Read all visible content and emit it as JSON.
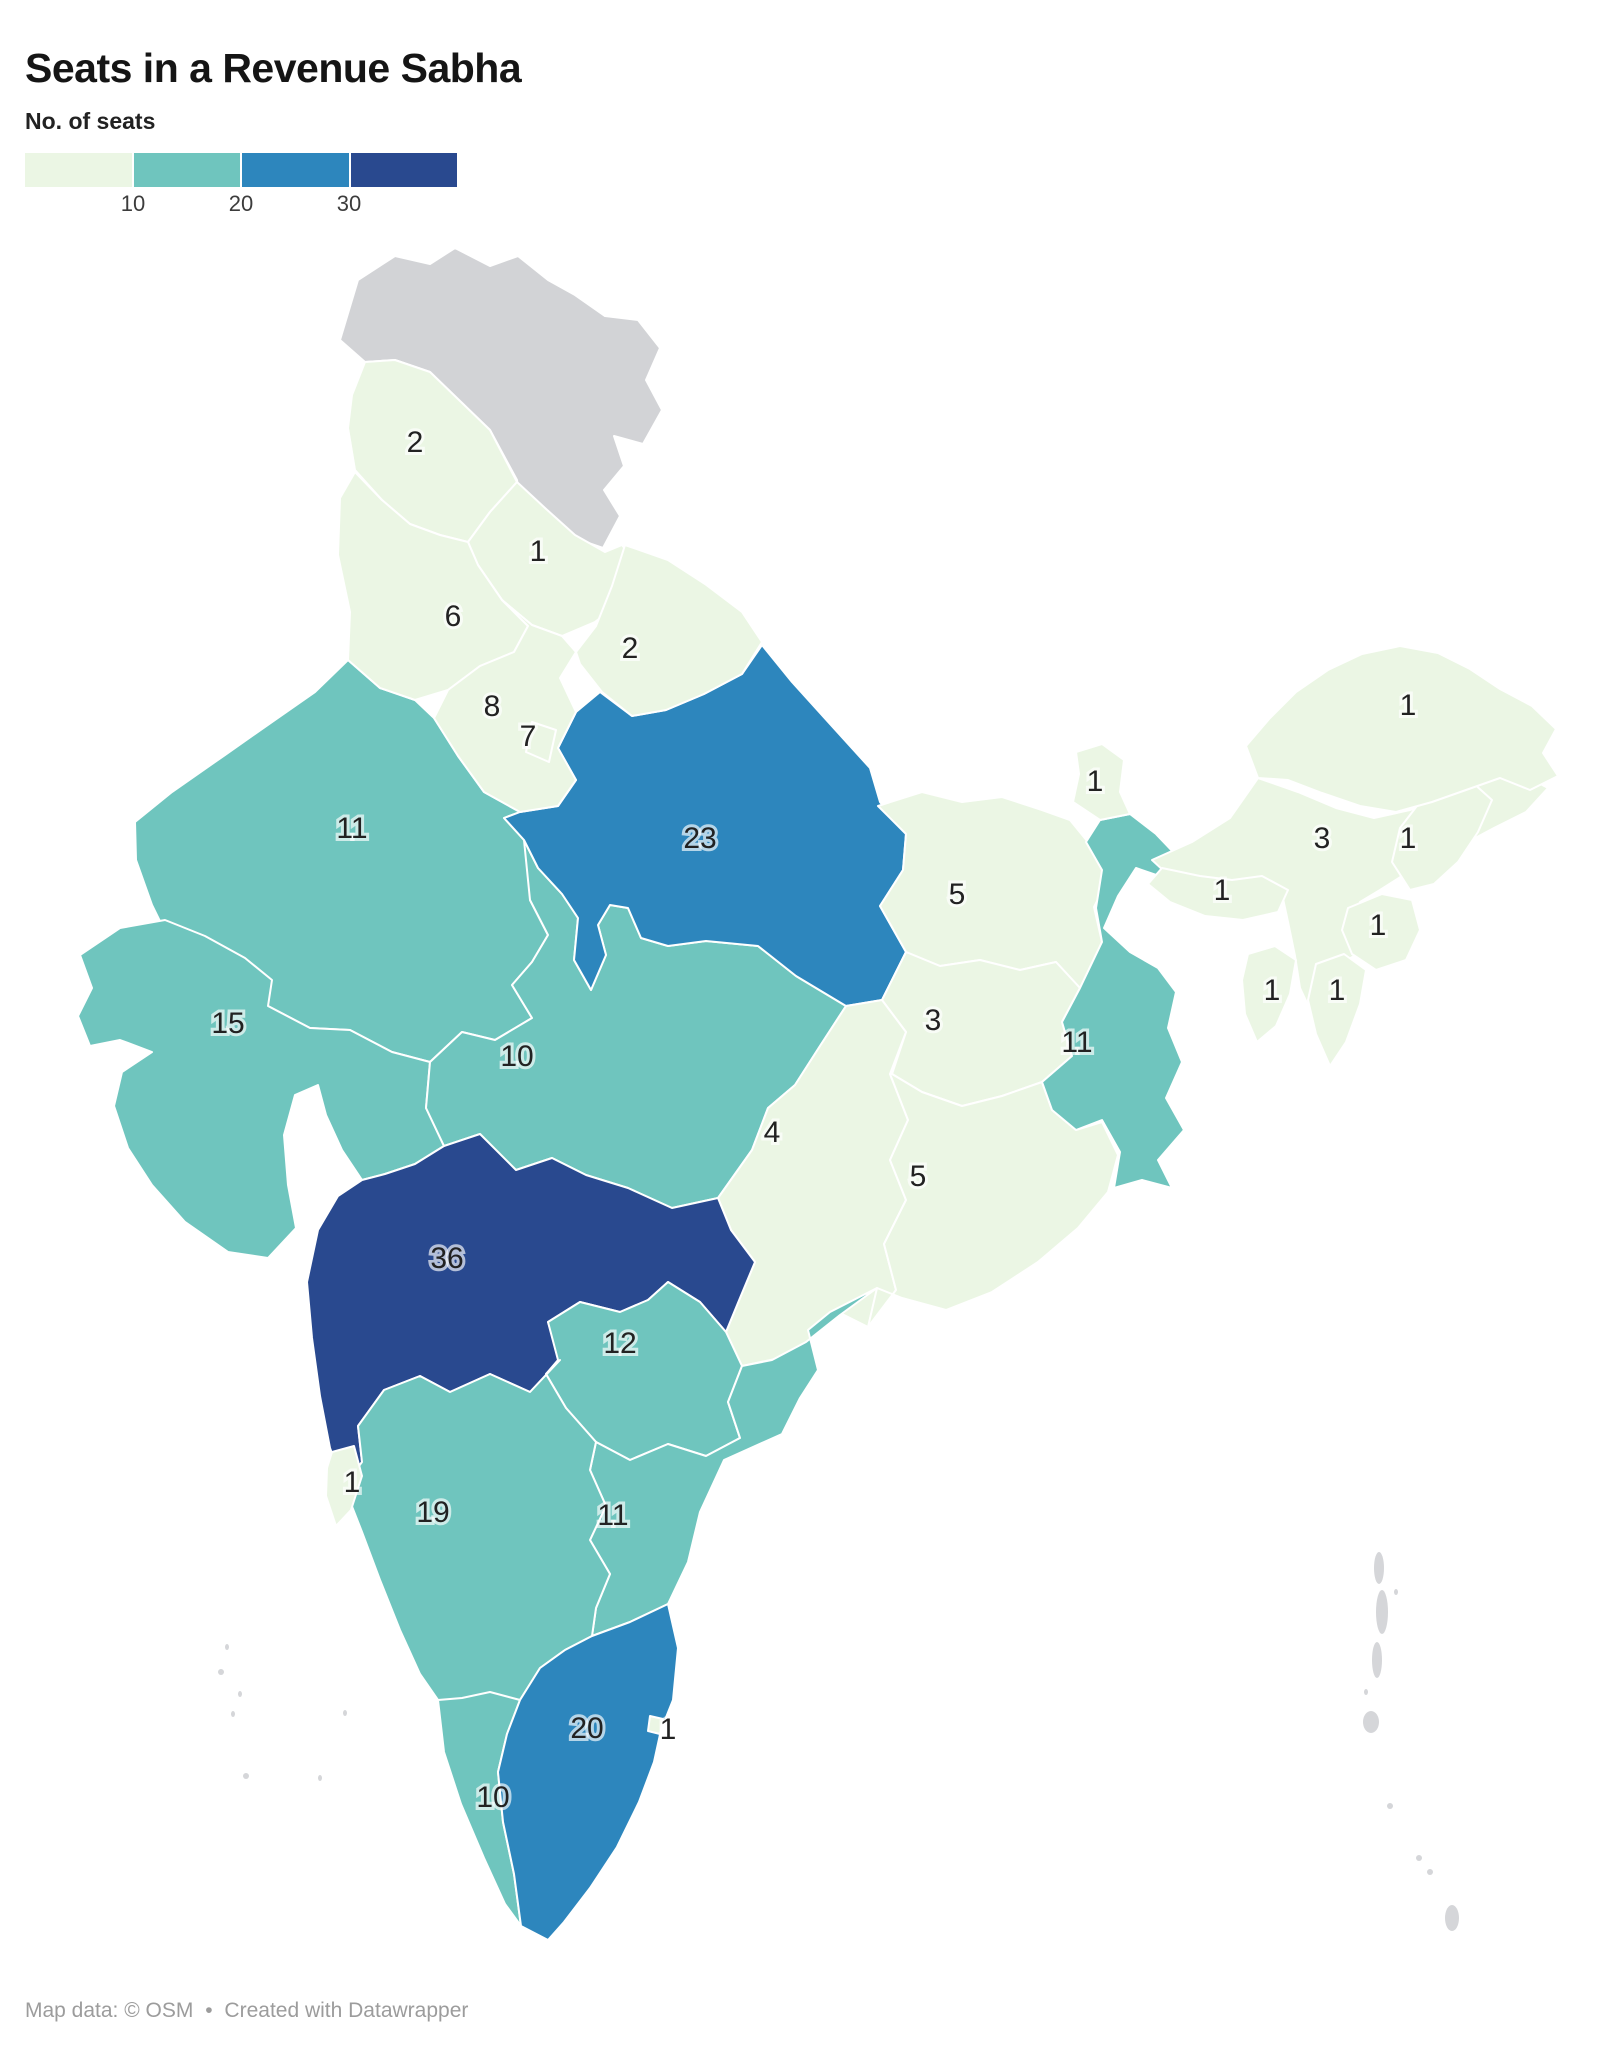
{
  "title": "Seats in a Revenue Sabha",
  "legend": {
    "label": "No. of seats",
    "ticks": [
      "10",
      "20",
      "30"
    ],
    "bin_colors": [
      "#ebf6e4",
      "#6fc5be",
      "#2d86bd",
      "#29498f"
    ],
    "no_data_color": "#d2d3d6"
  },
  "footer": {
    "attribution": "Map data: © OSM",
    "separator": "•",
    "credit": "Created with Datawrapper"
  },
  "chart_data": {
    "type": "choropleth_map",
    "region": "India",
    "title": "Seats in a Revenue Sabha",
    "value_label": "No. of seats",
    "legend_breaks": [
      10,
      20,
      30
    ],
    "no_data_regions": [
      "Ladakh / Jammu and Kashmir (upper crown)",
      "Andaman and Nicobar Islands",
      "Lakshadweep",
      "Chandigarh"
    ],
    "states": [
      {
        "id": "jammu-kashmir",
        "name": "Jammu & Kashmir",
        "seats": 2,
        "label": [
          415,
          442
        ]
      },
      {
        "id": "himachal-pradesh",
        "name": "Himachal Pradesh",
        "seats": 1,
        "label": [
          538,
          551
        ]
      },
      {
        "id": "punjab",
        "name": "Punjab",
        "seats": 6,
        "label": [
          453,
          616
        ]
      },
      {
        "id": "uttarakhand",
        "name": "Uttarakhand",
        "seats": 2,
        "label": [
          630,
          648
        ]
      },
      {
        "id": "haryana",
        "name": "Haryana",
        "seats": 8,
        "label": [
          492,
          706
        ]
      },
      {
        "id": "delhi",
        "name": "Delhi",
        "seats": 7,
        "label": [
          528,
          736
        ]
      },
      {
        "id": "rajasthan",
        "name": "Rajasthan",
        "seats": 11,
        "label": [
          352,
          828
        ]
      },
      {
        "id": "uttar-pradesh",
        "name": "Uttar Pradesh",
        "seats": 23,
        "label": [
          700,
          838
        ]
      },
      {
        "id": "bihar",
        "name": "Bihar",
        "seats": 5,
        "label": [
          957,
          894
        ]
      },
      {
        "id": "sikkim",
        "name": "Sikkim",
        "seats": 1,
        "label": [
          1095,
          781
        ]
      },
      {
        "id": "gujarat",
        "name": "Gujarat",
        "seats": 15,
        "label": [
          228,
          1023
        ]
      },
      {
        "id": "madhya-pradesh",
        "name": "Madhya Pradesh",
        "seats": 10,
        "label": [
          517,
          1056
        ]
      },
      {
        "id": "jharkhand",
        "name": "Jharkhand",
        "seats": 3,
        "label": [
          933,
          1020
        ]
      },
      {
        "id": "west-bengal",
        "name": "West Bengal",
        "seats": 11,
        "label": [
          1077,
          1042
        ]
      },
      {
        "id": "chhattisgarh",
        "name": "Chhattisgarh",
        "seats": 4,
        "label": [
          772,
          1132
        ]
      },
      {
        "id": "odisha",
        "name": "Odisha",
        "seats": 5,
        "label": [
          918,
          1176
        ]
      },
      {
        "id": "maharashtra",
        "name": "Maharashtra",
        "seats": 36,
        "label": [
          447,
          1258
        ]
      },
      {
        "id": "telangana",
        "name": "Telangana",
        "seats": 12,
        "label": [
          620,
          1343
        ]
      },
      {
        "id": "goa",
        "name": "Goa",
        "seats": 1,
        "label": [
          352,
          1482
        ]
      },
      {
        "id": "karnataka",
        "name": "Karnataka",
        "seats": 19,
        "label": [
          433,
          1512
        ]
      },
      {
        "id": "andhra-pradesh",
        "name": "Andhra Pradesh",
        "seats": 11,
        "label": [
          613,
          1515
        ]
      },
      {
        "id": "tamil-nadu",
        "name": "Tamil Nadu",
        "seats": 20,
        "label": [
          587,
          1728
        ]
      },
      {
        "id": "puducherry",
        "name": "Puducherry",
        "seats": 1,
        "label": [
          668,
          1729
        ]
      },
      {
        "id": "kerala",
        "name": "Kerala",
        "seats": 10,
        "label": [
          493,
          1797
        ]
      },
      {
        "id": "arunachal-pradesh",
        "name": "Arunachal Pradesh",
        "seats": 1,
        "label": [
          1408,
          705
        ]
      },
      {
        "id": "assam",
        "name": "Assam",
        "seats": 3,
        "label": [
          1322,
          838
        ]
      },
      {
        "id": "nagaland",
        "name": "Nagaland",
        "seats": 1,
        "label": [
          1408,
          838
        ]
      },
      {
        "id": "meghalaya",
        "name": "Meghalaya",
        "seats": 1,
        "label": [
          1222,
          890
        ]
      },
      {
        "id": "manipur",
        "name": "Manipur",
        "seats": 1,
        "label": [
          1378,
          925
        ]
      },
      {
        "id": "tripura",
        "name": "Tripura",
        "seats": 1,
        "label": [
          1272,
          990
        ]
      },
      {
        "id": "mizoram",
        "name": "Mizoram",
        "seats": 1,
        "label": [
          1337,
          990
        ]
      }
    ]
  }
}
